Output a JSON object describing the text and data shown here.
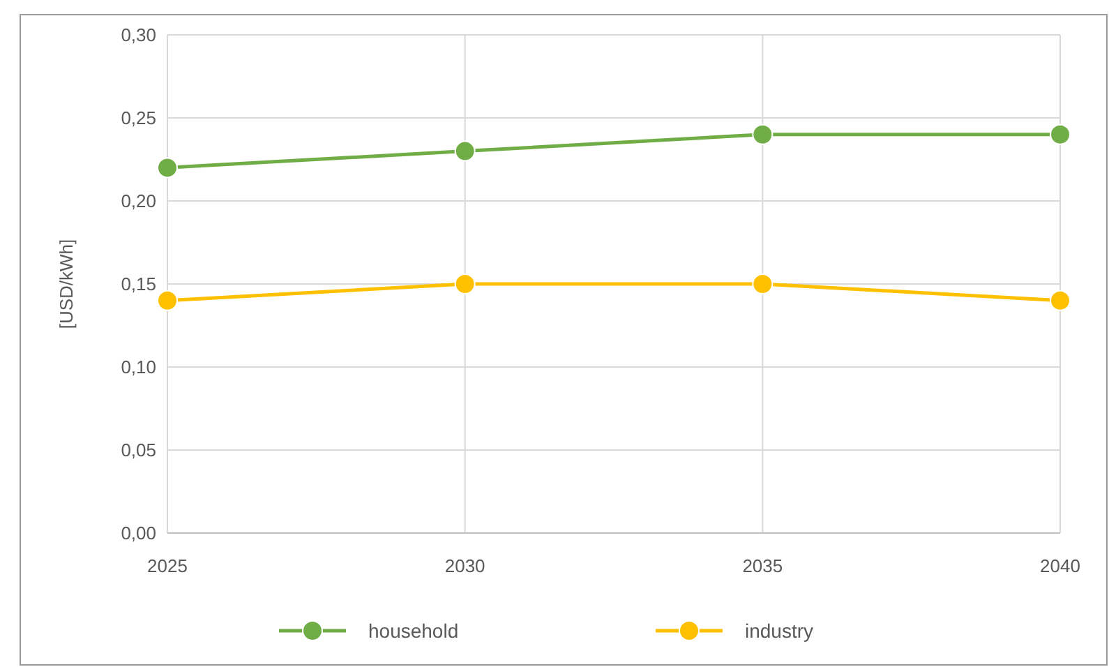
{
  "chart_data": {
    "type": "line",
    "ylabel": "[USD/kWh]",
    "x": [
      2025,
      2030,
      2035,
      2040
    ],
    "xlim": [
      2025,
      2040
    ],
    "xticks": [
      2025,
      2030,
      2035,
      2040
    ],
    "ylim": [
      0,
      0.3
    ],
    "yticks": [
      {
        "value": 0,
        "label": "0,00"
      },
      {
        "value": 0.05,
        "label": "0,05"
      },
      {
        "value": 0.1,
        "label": "0,10"
      },
      {
        "value": 0.15,
        "label": "0,15"
      },
      {
        "value": 0.2,
        "label": "0,20"
      },
      {
        "value": 0.25,
        "label": "0,25"
      },
      {
        "value": 0.3,
        "label": "0,30"
      }
    ],
    "series": [
      {
        "name": "household",
        "color": "#70ad47",
        "values": [
          0.22,
          0.23,
          0.24,
          0.24
        ]
      },
      {
        "name": "industry",
        "color": "#ffc000",
        "values": [
          0.14,
          0.15,
          0.15,
          0.14
        ]
      }
    ],
    "grid": true,
    "legend": "bottom",
    "marker": "circle",
    "line_style": "solid"
  }
}
